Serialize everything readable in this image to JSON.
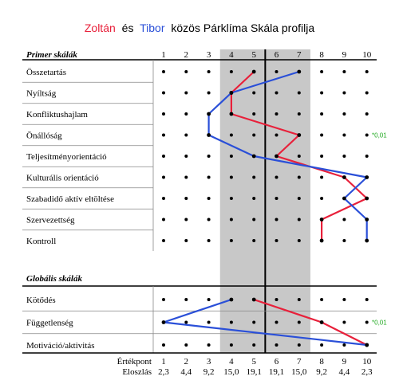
{
  "title": {
    "name1": "Zoltán",
    "conj": "és",
    "name2": "Tibor",
    "rest": "közös Párklíma Skála profilja"
  },
  "colors": {
    "zoltan": "#e8203a",
    "tibor": "#2a4fd8",
    "band": "#c8c8c8",
    "significance": "#22aa22",
    "grid": "#000000"
  },
  "chart_data": {
    "type": "line",
    "scale": [
      1,
      2,
      3,
      4,
      5,
      6,
      7,
      8,
      9,
      10
    ],
    "sections": [
      {
        "title": "Primer skálák",
        "rows": [
          {
            "label": "Összetartás",
            "zoltan": 5,
            "tibor": 7,
            "note": ""
          },
          {
            "label": "Nyíltság",
            "zoltan": 4,
            "tibor": 4,
            "note": ""
          },
          {
            "label": "Konfliktushajlam",
            "zoltan": 4,
            "tibor": 3,
            "note": ""
          },
          {
            "label": "Önállóság",
            "zoltan": 7,
            "tibor": 3,
            "note": "*0,01"
          },
          {
            "label": "Teljesítményorientáció",
            "zoltan": 6,
            "tibor": 5,
            "note": ""
          },
          {
            "label": "Kulturális orientáció",
            "zoltan": 9,
            "tibor": 10,
            "note": ""
          },
          {
            "label": "Szabadidő aktív eltöltése",
            "zoltan": 10,
            "tibor": 9,
            "note": ""
          },
          {
            "label": "Szervezettség",
            "zoltan": 8,
            "tibor": 10,
            "note": ""
          },
          {
            "label": "Kontroll",
            "zoltan": 8,
            "tibor": 10,
            "note": ""
          }
        ]
      },
      {
        "title": "Globális skálák",
        "rows": [
          {
            "label": "Kötődés",
            "zoltan": 5,
            "tibor": 4,
            "note": ""
          },
          {
            "label": "Függetlenség",
            "zoltan": 8,
            "tibor": 1,
            "note": "*0,01"
          },
          {
            "label": "Motiváció/aktivitás",
            "zoltan": 10,
            "tibor": 10,
            "note": ""
          }
        ]
      }
    ],
    "shaded_range": [
      4,
      7
    ],
    "center_lines": [
      5.5
    ],
    "footer": {
      "ertekpont_label": "Értékpont",
      "ertekpont": [
        "1",
        "2",
        "3",
        "4",
        "5",
        "6",
        "7",
        "8",
        "9",
        "10"
      ],
      "eloszlas_label": "Eloszlás",
      "eloszlas": [
        "2,3",
        "4,4",
        "9,2",
        "15,0",
        "19,1",
        "19,1",
        "15,0",
        "9,2",
        "4,4",
        "2,3"
      ]
    }
  }
}
